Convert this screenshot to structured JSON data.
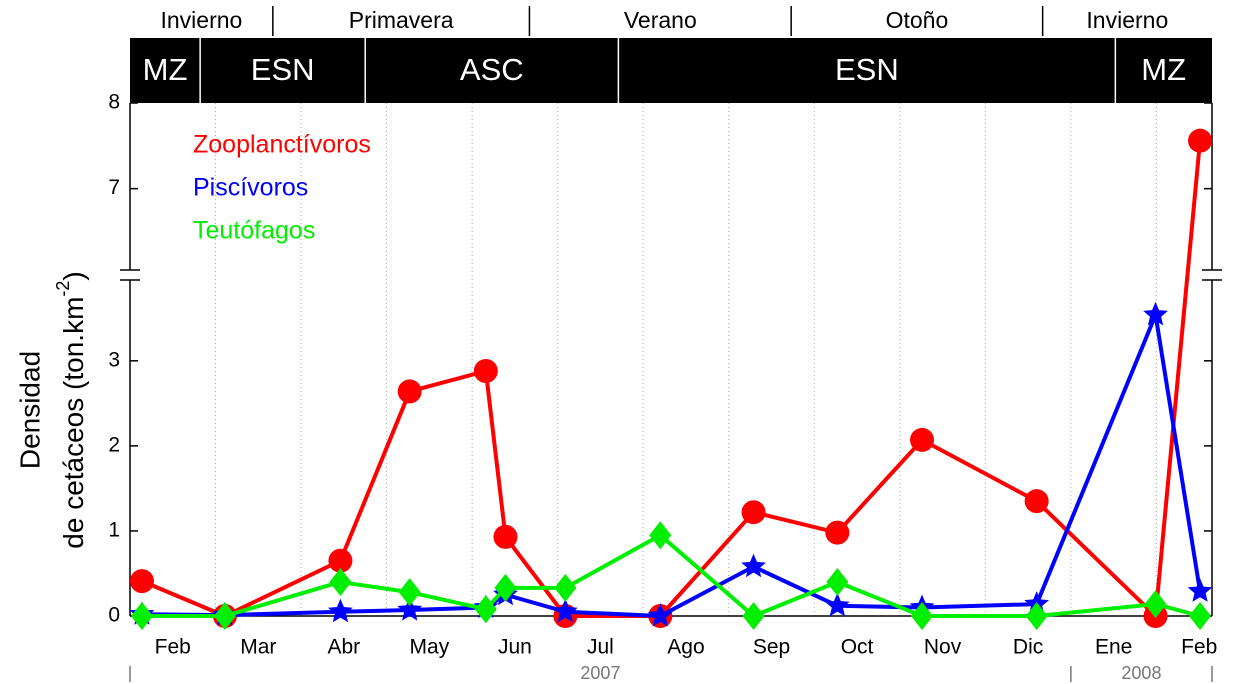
{
  "chart_data": {
    "type": "line",
    "ylabel": {
      "line1": "Densidad",
      "line2": "de cetáceos (ton.km",
      "superscript": "-2",
      "close": ")"
    },
    "seasons": [
      {
        "label": "Invierno",
        "start": 1,
        "end": 2.67
      },
      {
        "label": "Primavera",
        "start": 2.67,
        "end": 5.67
      },
      {
        "label": "Verano",
        "start": 5.67,
        "end": 8.73
      },
      {
        "label": "Otoño",
        "start": 8.73,
        "end": 11.67
      },
      {
        "label": "Invierno",
        "start": 11.67,
        "end": 13.65
      }
    ],
    "phases": [
      {
        "label": "MZ",
        "start": 1,
        "end": 1.82
      },
      {
        "label": "ESN",
        "start": 1.82,
        "end": 3.75
      },
      {
        "label": "ASC",
        "start": 3.75,
        "end": 6.71
      },
      {
        "label": "ESN",
        "start": 6.71,
        "end": 12.52
      },
      {
        "label": "MZ",
        "start": 12.52,
        "end": 13.65
      }
    ],
    "x": [
      1.14,
      2.11,
      3.46,
      4.27,
      5.16,
      5.39,
      6.09,
      7.2,
      8.29,
      9.27,
      10.26,
      11.6,
      12.99,
      13.51
    ],
    "xlim": [
      1,
      13.65
    ],
    "xticks": [
      {
        "value": 1.5,
        "label": "Feb"
      },
      {
        "value": 2.5,
        "label": "Mar"
      },
      {
        "value": 3.5,
        "label": "Abr"
      },
      {
        "value": 4.5,
        "label": "May"
      },
      {
        "value": 5.5,
        "label": "Jun"
      },
      {
        "value": 6.5,
        "label": "Jul"
      },
      {
        "value": 7.5,
        "label": "Ago"
      },
      {
        "value": 8.5,
        "label": "Sep"
      },
      {
        "value": 9.5,
        "label": "Oct"
      },
      {
        "value": 10.5,
        "label": "Nov"
      },
      {
        "value": 11.5,
        "label": "Dic"
      },
      {
        "value": 12.5,
        "label": "Ene"
      },
      {
        "value": 13.5,
        "label": "Feb"
      }
    ],
    "xgrid": [
      2,
      3,
      4,
      5,
      6,
      7,
      8,
      9,
      10,
      11,
      12,
      13
    ],
    "years": [
      {
        "label": "2007",
        "start": 1,
        "end": 12
      },
      {
        "label": "2008",
        "start": 12,
        "end": 13.65
      }
    ],
    "ylim": [
      0,
      3.95
    ],
    "yticks": [
      0,
      1,
      2,
      3
    ],
    "ylim_upper": [
      6.05,
      8
    ],
    "yticks_upper": [
      7,
      8
    ],
    "series": [
      {
        "name": "Zooplanctívoros",
        "color": "#ff0000",
        "marker": "circle",
        "values": [
          0.41,
          0,
          0.65,
          2.64,
          2.88,
          0.93,
          0,
          0,
          1.22,
          0.98,
          2.07,
          1.35,
          0,
          7.56
        ]
      },
      {
        "name": "Piscívoros",
        "color": "#0000ff",
        "marker": "star",
        "values": [
          0.02,
          0.01,
          0.05,
          0.07,
          0.1,
          0.25,
          0.05,
          0,
          0.58,
          0.12,
          0.1,
          0.14,
          3.54,
          0.29
        ]
      },
      {
        "name": "Teutófagos",
        "color": "#00ee00",
        "marker": "diamond",
        "values": [
          0,
          0,
          0.4,
          0.28,
          0.08,
          0.33,
          0.33,
          0.95,
          0,
          0.4,
          0,
          0,
          0.14,
          0
        ]
      }
    ]
  }
}
